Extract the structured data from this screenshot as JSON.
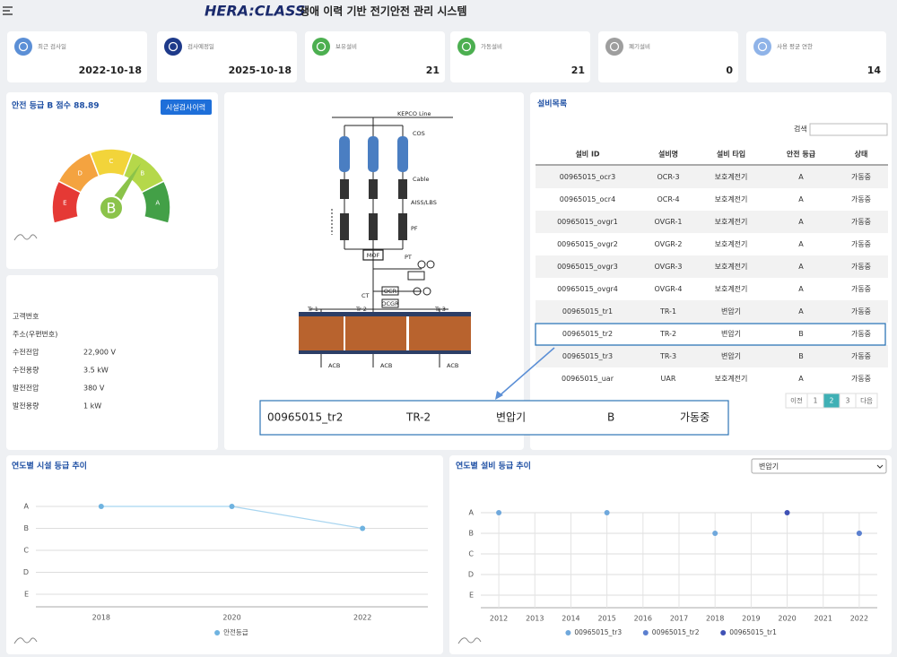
{
  "header": {
    "logo": "HERA:CLASS",
    "title": "생애 이력 기반 전기안전 관리 시스템"
  },
  "stats": [
    {
      "label": "최근 검사일",
      "value": "2022-10-18",
      "color": "#5b8fd6"
    },
    {
      "label": "검사예정일",
      "value": "2025-10-18",
      "color": "#1e3a8a"
    },
    {
      "label": "보유설비",
      "value": "21",
      "color": "#4caf50"
    },
    {
      "label": "가동설비",
      "value": "21",
      "color": "#4caf50"
    },
    {
      "label": "폐기설비",
      "value": "0",
      "color": "#9e9e9e"
    },
    {
      "label": "사용 평균 연한",
      "value": "14",
      "color": "#8fb3e8"
    }
  ],
  "gauge": {
    "title": "안전 등급 B 점수 88.89",
    "button": "시설검사이력",
    "grade": "B",
    "segments": [
      {
        "label": "E",
        "color": "#e53935"
      },
      {
        "label": "D",
        "color": "#f4a340"
      },
      {
        "label": "C",
        "color": "#f2d43a"
      },
      {
        "label": "B",
        "color": "#b5d84a"
      },
      {
        "label": "A",
        "color": "#43a047"
      }
    ]
  },
  "info": {
    "rows": [
      {
        "label": "고객번호"
      },
      {
        "label": "주소(우편번호)"
      },
      {
        "label": "수전전압",
        "value": "22,900 V"
      },
      {
        "label": "수전용량",
        "value": "3.5 kW"
      },
      {
        "label": "발전전압",
        "value": "380 V"
      },
      {
        "label": "발전용량",
        "value": "1 kW"
      }
    ]
  },
  "diagram": {
    "kepco": "KEPCO Line",
    "cos": "COS",
    "cable": "Cable",
    "aiss": "AISS/LBS",
    "pf": "PF",
    "mof": "MOF",
    "pt": "PT",
    "ct": "CT",
    "ocr": "OCR",
    "ocgr": "OCGR",
    "transformers": [
      "Tr 1",
      "Tr 2",
      "Tr 3"
    ],
    "acb": [
      "ACB",
      "ACB",
      "ACB"
    ]
  },
  "popup": [
    "00965015_tr2",
    "TR-2",
    "변압기",
    "B",
    "가동중"
  ],
  "table": {
    "title": "설비목록",
    "search": "검색",
    "columns": [
      "설비 ID",
      "설비명",
      "설비 타입",
      "안전 등급",
      "상태"
    ],
    "rows": [
      [
        "00965015_ocr3",
        "OCR-3",
        "보호계전기",
        "A",
        "가동중"
      ],
      [
        "00965015_ocr4",
        "OCR-4",
        "보호계전기",
        "A",
        "가동중"
      ],
      [
        "00965015_ovgr1",
        "OVGR-1",
        "보호계전기",
        "A",
        "가동중"
      ],
      [
        "00965015_ovgr2",
        "OVGR-2",
        "보호계전기",
        "A",
        "가동중"
      ],
      [
        "00965015_ovgr3",
        "OVGR-3",
        "보호계전기",
        "A",
        "가동중"
      ],
      [
        "00965015_ovgr4",
        "OVGR-4",
        "보호계전기",
        "A",
        "가동중"
      ],
      [
        "00965015_tr1",
        "TR-1",
        "변압기",
        "A",
        "가동중"
      ],
      [
        "00965015_tr2",
        "TR-2",
        "변압기",
        "B",
        "가동중"
      ],
      [
        "00965015_tr3",
        "TR-3",
        "변압기",
        "B",
        "가동중"
      ],
      [
        "00965015_uar",
        "UAR",
        "보호계전기",
        "A",
        "가동중"
      ]
    ],
    "selected_row": 7,
    "pagination": [
      "이전",
      "1",
      "2",
      "3",
      "다음"
    ],
    "current_page": 2
  },
  "charts": [
    {
      "type": "line",
      "title": "연도별 시설 등급 추이",
      "categories": [
        "2018",
        "2020",
        "2022"
      ],
      "grades": [
        "A",
        "B",
        "C",
        "D",
        "E"
      ],
      "series": [
        {
          "name": "안전등급",
          "color": "#6fb3e0",
          "line_color": "#a8d5f0",
          "values": [
            "A",
            "A",
            "B"
          ]
        }
      ]
    },
    {
      "type": "line",
      "title": "연도별 설비 등급 추이",
      "select": "변압기",
      "categories": [
        "2012",
        "2013",
        "2014",
        "2015",
        "2016",
        "2017",
        "2018",
        "2019",
        "2020",
        "2021",
        "2022"
      ],
      "grades": [
        "A",
        "B",
        "C",
        "D",
        "E"
      ],
      "series": [
        {
          "name": "00965015_tr3",
          "color": "#6fa8dc",
          "line_color": "#5b8ccc",
          "values": [
            "A",
            null,
            null,
            "A",
            null,
            null,
            "B",
            null,
            null,
            null,
            "B"
          ]
        },
        {
          "name": "00965015_tr2",
          "color": "#5b7fcf",
          "line_color": "#5b7fcf",
          "values": [
            null,
            null,
            null,
            null,
            null,
            null,
            null,
            null,
            null,
            null,
            "B"
          ]
        },
        {
          "name": "00965015_tr1",
          "color": "#3f51b5",
          "line_color": "#3f51b5",
          "values": [
            null,
            null,
            null,
            null,
            null,
            null,
            null,
            null,
            "A",
            null,
            null
          ]
        }
      ]
    }
  ]
}
